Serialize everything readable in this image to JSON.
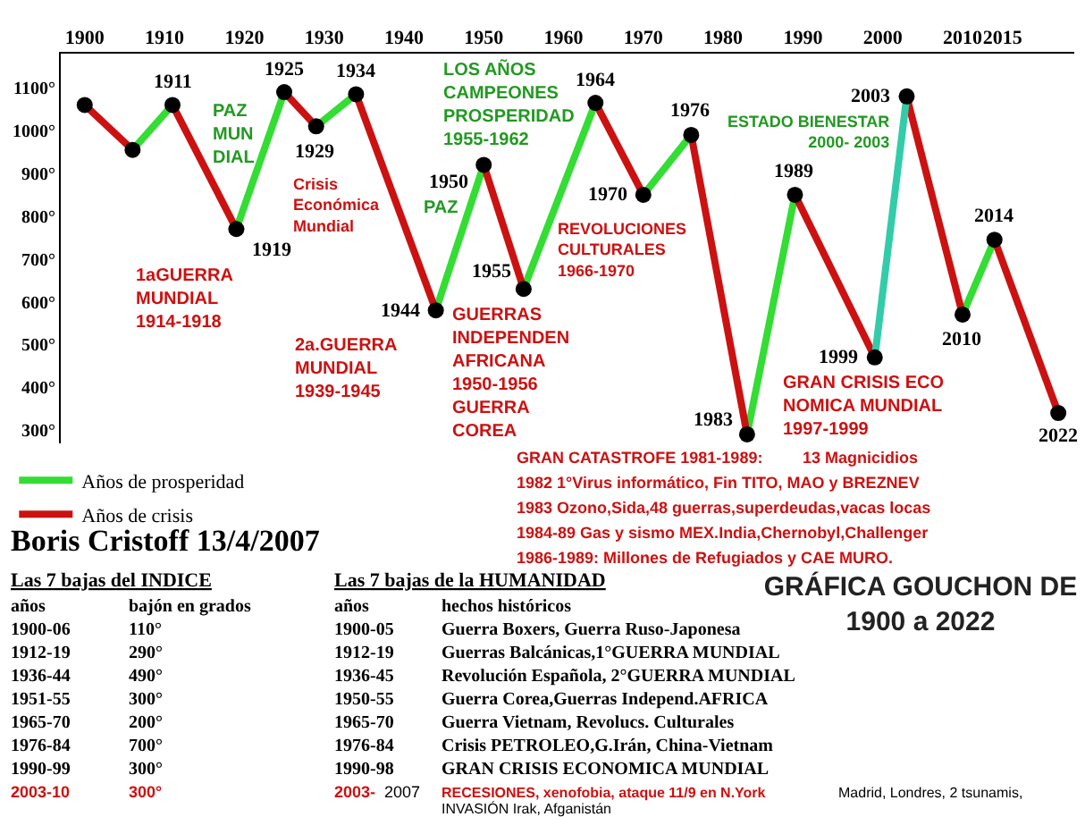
{
  "chart_data": {
    "type": "line",
    "title": "GRÁFICA GOUCHON DE\n1900 a 2022",
    "xlim": [
      1897,
      2024
    ],
    "xticks": [
      1900,
      1910,
      1920,
      1930,
      1940,
      1950,
      1960,
      1970,
      1980,
      1990,
      2000,
      2010,
      2015
    ],
    "ylim": [
      270,
      1180
    ],
    "yticks": [
      {
        "value": 300,
        "label": "300°"
      },
      {
        "value": 400,
        "label": "400°"
      },
      {
        "value": 500,
        "label": "500°"
      },
      {
        "value": 600,
        "label": "600°"
      },
      {
        "value": 700,
        "label": "700°"
      },
      {
        "value": 800,
        "label": "800°"
      },
      {
        "value": 900,
        "label": "900°"
      },
      {
        "value": 1000,
        "label": "1000°"
      },
      {
        "value": 1100,
        "label": "1100°"
      }
    ],
    "legend": "bottom left",
    "series": [
      {
        "name": "Años de prosperidad",
        "color": "#33dd33",
        "marker": "none",
        "x": [
          1906,
          1911,
          1915,
          1919,
          1925,
          1927,
          1929,
          1934,
          1939,
          1944,
          1950,
          1952,
          1955,
          1964,
          1967,
          1970,
          1976,
          1979,
          1983,
          1989,
          1999,
          2010,
          2014
        ],
        "values": [
          955,
          1060,
          null,
          770,
          1090,
          null,
          1010,
          1085,
          null,
          580,
          920,
          null,
          630,
          1065,
          null,
          850,
          990,
          null,
          290,
          850,
          null,
          570,
          745
        ]
      },
      {
        "name": "Años de crisis",
        "color": "#cc1111",
        "marker": "none",
        "x": [
          1900,
          1906,
          1908,
          1911,
          1919,
          1922,
          1925,
          1929,
          1931,
          1934,
          1944,
          1947,
          1950,
          1955,
          1960,
          1964,
          1970,
          1973,
          1976,
          1983,
          1986,
          1989,
          1999,
          2001,
          2003,
          2010,
          2012,
          2014,
          2022
        ],
        "values": [
          1060,
          955,
          null,
          1060,
          770,
          null,
          1090,
          1010,
          null,
          1085,
          580,
          null,
          920,
          630,
          null,
          1065,
          850,
          null,
          990,
          290,
          null,
          850,
          470,
          null,
          1080,
          570,
          null,
          745,
          340
        ]
      },
      {
        "color": "#33ccaa",
        "marker": "none",
        "x": [
          1999,
          2003
        ],
        "values": [
          470,
          1080
        ]
      },
      {
        "color": "#000000",
        "type": "scatter",
        "marker": "circle",
        "x": [
          1900,
          1906,
          1911,
          1919,
          1925,
          1929,
          1934,
          1944,
          1950,
          1955,
          1964,
          1970,
          1976,
          1983,
          1989,
          1999,
          2003,
          2010,
          2014,
          2022
        ],
        "values": [
          1060,
          955,
          1060,
          770,
          1090,
          1010,
          1085,
          580,
          920,
          630,
          1065,
          850,
          990,
          290,
          850,
          470,
          1080,
          570,
          745,
          340
        ]
      }
    ],
    "annotations": [
      "PAZ\nMUN\nDIAL",
      "1aGUERRA\nMUNDIAL\n1914-1918",
      "Crisis\nEconómica\nMundial",
      "2a.GUERRA\nMUNDIAL\n1939-1945",
      "PAZ",
      "LOS AÑOS\nCAMPEONES\nPROSPERIDAD\n1955-1962",
      "GUERRAS\nINDEPENDEN\nAFRICANA\n1950-1956\nGUERRA\nCOREA",
      "REVOLUCIONES\nCULTURALES\n1966-1970",
      "ESTADO BIENESTAR\n2000- 2003",
      "GRAN CRISIS ECO\nNOMICA MUNDIAL\n1997-1999",
      {
        "text": "1911",
        "x": 1911,
        "y": 1060
      },
      {
        "text": "1919",
        "x": 1919,
        "y": 770
      },
      {
        "text": "1925",
        "x": 1925,
        "y": 1090
      },
      {
        "text": "1929",
        "x": 1929,
        "y": 1010
      },
      {
        "text": "1934",
        "x": 1934,
        "y": 1085
      },
      {
        "text": "1944",
        "x": 1944,
        "y": 580
      },
      {
        "text": "1950",
        "x": 1950,
        "y": 920
      },
      {
        "text": "1955",
        "x": 1955,
        "y": 630
      },
      {
        "text": "1964",
        "x": 1964,
        "y": 1065
      },
      {
        "text": "1970",
        "x": 1970,
        "y": 850
      },
      {
        "text": "1976",
        "x": 1976,
        "y": 990
      },
      {
        "text": "1983",
        "x": 1983,
        "y": 290
      },
      {
        "text": "1989",
        "x": 1989,
        "y": 850
      },
      {
        "text": "1999",
        "x": 1999,
        "y": 470
      },
      {
        "text": "2003",
        "x": 2003,
        "y": 1080
      },
      {
        "text": "2010",
        "x": 2010,
        "y": 570
      },
      {
        "text": "2014",
        "x": 2014,
        "y": 745
      },
      {
        "text": "2022",
        "x": 2022,
        "y": 340
      },
      "GRAN CATASTROFE 1981-1989:",
      "13 Magnicidios",
      "1982 1°Virus informático, Fin TITO, MAO y BREZNEV",
      "1983 Ozono,Sida,48 guerras,superdeudas,vacas locas",
      "1984-89 Gas y sismo MEX.India,Chernobyl,Challenger",
      "1986-1989: Millones de Refugiados y CAE MURO.",
      "Boris Cristoff 13/4/2007",
      "Las 7 bajas del INDICE",
      "Las 7 bajas de la HUMANIDAD",
      "años",
      "bajón en grados",
      "años",
      "hechos históricos",
      "1900-06",
      "110°",
      "1900-05",
      "Guerra Boxers, Guerra Ruso-Japonesa",
      "1912-19",
      "290°",
      "1912-19",
      "Guerras Balcánicas,1°GUERRA MUNDIAL",
      "1936-44",
      "490°",
      "1936-45",
      "Revolución Española, 2°GUERRA MUNDIAL",
      "1951-55",
      "300°",
      "1950-55",
      "Guerra Corea,Guerras Independ.AFRICA",
      "1965-70",
      "200°",
      "1965-70",
      "Guerra Vietnam, Revolucs. Culturales",
      "1976-84",
      "700°",
      "1976-84",
      "Crisis PETROLEO,G.Irán, China-Vietnam",
      "1990-99",
      "300°",
      "1990-98",
      "GRAN CRISIS ECONOMICA MUNDIAL",
      "2003-10",
      "300°",
      "2003-",
      "2007",
      "RECESIONES, xenofobia, ataque 11/9 en N.York",
      "Madrid, Londres, 2 tsunamis,",
      "INVASIÓN Irak, Afganistán"
    ]
  }
}
